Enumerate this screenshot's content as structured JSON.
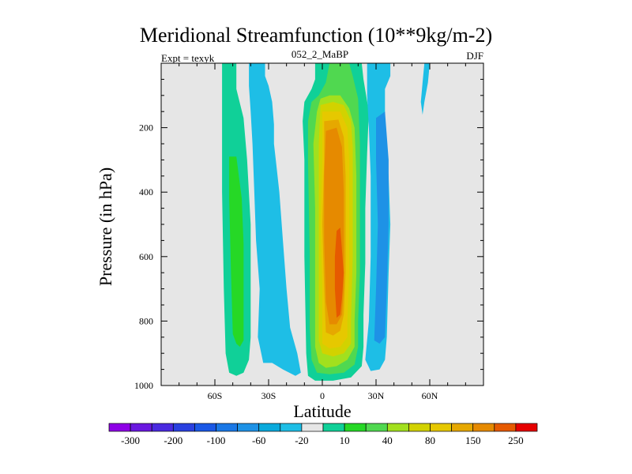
{
  "chart_data": {
    "type": "contour",
    "title": "Meridional Streamfunction (10**9kg/m-2)",
    "subtitle_left": "Expt = texyk",
    "subtitle_center": "052_2_MaBP",
    "subtitle_right": "DJF",
    "xlabel": "Latitude",
    "ylabel": "Pressure (in hPa)",
    "xlim": [
      -90,
      90
    ],
    "ylim": [
      1000,
      0
    ],
    "x_ticks": [
      {
        "value": -60,
        "label": "60S"
      },
      {
        "value": -30,
        "label": "30S"
      },
      {
        "value": 0,
        "label": "0"
      },
      {
        "value": 30,
        "label": "30N"
      },
      {
        "value": 60,
        "label": "60N"
      }
    ],
    "y_ticks": [
      {
        "value": 200,
        "label": "200"
      },
      {
        "value": 400,
        "label": "400"
      },
      {
        "value": 600,
        "label": "600"
      },
      {
        "value": 800,
        "label": "800"
      },
      {
        "value": 1000,
        "label": "1000"
      }
    ],
    "background_color": "#e6e6e6",
    "colorbar": {
      "colors": [
        "#8e00e6",
        "#6a18e0",
        "#4a2ae0",
        "#2a40e0",
        "#1a58e6",
        "#1a78e6",
        "#1e92e6",
        "#0aaadc",
        "#1ebee6",
        "#e6e6e6",
        "#10d098",
        "#26d826",
        "#50d850",
        "#a2e01e",
        "#d2d200",
        "#e6c800",
        "#e6a800",
        "#e68a00",
        "#e65a00",
        "#e60000"
      ],
      "labels": [
        "-300",
        "-200",
        "-100",
        "-60",
        "-20",
        "10",
        "40",
        "80",
        "150",
        "250"
      ]
    },
    "contour_fills": [
      {
        "name": "sh-polar-positive",
        "level_color": "#10d098",
        "points": [
          [
            -56,
            0
          ],
          [
            -48,
            0
          ],
          [
            -48,
            80
          ],
          [
            -44,
            170
          ],
          [
            -42,
            300
          ],
          [
            -40,
            500
          ],
          [
            -40,
            700
          ],
          [
            -40,
            850
          ],
          [
            -41,
            920
          ],
          [
            -44,
            960
          ],
          [
            -48,
            970
          ],
          [
            -52,
            960
          ],
          [
            -54,
            900
          ],
          [
            -55,
            700
          ],
          [
            -56,
            400
          ],
          [
            -56,
            0
          ]
        ]
      },
      {
        "name": "sh-polar-positive-core",
        "level_color": "#26d826",
        "points": [
          [
            -52,
            290
          ],
          [
            -48,
            290
          ],
          [
            -45,
            420
          ],
          [
            -44,
            560
          ],
          [
            -44,
            700
          ],
          [
            -44,
            860
          ],
          [
            -46,
            880
          ],
          [
            -48,
            870
          ],
          [
            -50,
            840
          ],
          [
            -51,
            650
          ],
          [
            -52,
            420
          ],
          [
            -52,
            290
          ]
        ]
      },
      {
        "name": "sh-midlat-negative",
        "level_color": "#1ebee6",
        "points": [
          [
            -41,
            0
          ],
          [
            -32,
            0
          ],
          [
            -32,
            40
          ],
          [
            -30,
            70
          ],
          [
            -28,
            120
          ],
          [
            -27,
            190
          ],
          [
            -27,
            250
          ],
          [
            -26,
            300
          ],
          [
            -24,
            400
          ],
          [
            -22,
            550
          ],
          [
            -20,
            700
          ],
          [
            -18,
            820
          ],
          [
            -14,
            900
          ],
          [
            -12,
            960
          ],
          [
            -15,
            970
          ],
          [
            -22,
            950
          ],
          [
            -28,
            930
          ],
          [
            -33,
            930
          ],
          [
            -36,
            850
          ],
          [
            -35,
            700
          ],
          [
            -37,
            550
          ],
          [
            -38,
            400
          ],
          [
            -39,
            250
          ],
          [
            -40,
            150
          ],
          [
            -41,
            70
          ],
          [
            -41,
            0
          ]
        ]
      },
      {
        "name": "tropical-cell-10",
        "level_color": "#10d098",
        "points": [
          [
            -4,
            0
          ],
          [
            22,
            0
          ],
          [
            23,
            50
          ],
          [
            26,
            150
          ],
          [
            25,
            280
          ],
          [
            24,
            450
          ],
          [
            24,
            620
          ],
          [
            23,
            780
          ],
          [
            23,
            880
          ],
          [
            22,
            940
          ],
          [
            16,
            975
          ],
          [
            6,
            985
          ],
          [
            -4,
            985
          ],
          [
            -8,
            970
          ],
          [
            -9,
            900
          ],
          [
            -10,
            600
          ],
          [
            -10,
            300
          ],
          [
            -11,
            180
          ],
          [
            -10,
            120
          ],
          [
            -6,
            80
          ],
          [
            -4,
            50
          ],
          [
            -4,
            0
          ]
        ]
      },
      {
        "name": "tropical-cell-40",
        "level_color": "#50d850",
        "points": [
          [
            4,
            0
          ],
          [
            15,
            0
          ],
          [
            17,
            40
          ],
          [
            20,
            110
          ],
          [
            21,
            250
          ],
          [
            21,
            450
          ],
          [
            21,
            650
          ],
          [
            20,
            800
          ],
          [
            20,
            880
          ],
          [
            18,
            935
          ],
          [
            12,
            960
          ],
          [
            4,
            965
          ],
          [
            -3,
            960
          ],
          [
            -6,
            920
          ],
          [
            -7,
            820
          ],
          [
            -7,
            600
          ],
          [
            -8,
            300
          ],
          [
            -8,
            180
          ],
          [
            -6,
            120
          ],
          [
            -2,
            100
          ],
          [
            2,
            60
          ],
          [
            4,
            0
          ]
        ]
      },
      {
        "name": "tropical-cell-80",
        "level_color": "#a2e01e",
        "points": [
          [
            -1,
            110
          ],
          [
            4,
            100
          ],
          [
            10,
            100
          ],
          [
            15,
            140
          ],
          [
            18,
            200
          ],
          [
            19,
            350
          ],
          [
            19,
            500
          ],
          [
            19,
            650
          ],
          [
            18,
            800
          ],
          [
            18,
            880
          ],
          [
            14,
            920
          ],
          [
            8,
            940
          ],
          [
            2,
            945
          ],
          [
            -2,
            930
          ],
          [
            -4,
            880
          ],
          [
            -4,
            700
          ],
          [
            -4,
            450
          ],
          [
            -5,
            250
          ],
          [
            -3,
            150
          ],
          [
            -1,
            110
          ]
        ]
      },
      {
        "name": "tropical-cell-150",
        "level_color": "#d2d200",
        "points": [
          [
            -1,
            130
          ],
          [
            6,
            120
          ],
          [
            12,
            130
          ],
          [
            16,
            180
          ],
          [
            17,
            260
          ],
          [
            17,
            400
          ],
          [
            17,
            600
          ],
          [
            16,
            800
          ],
          [
            16,
            870
          ],
          [
            12,
            900
          ],
          [
            6,
            910
          ],
          [
            0,
            900
          ],
          [
            -2,
            860
          ],
          [
            -2,
            700
          ],
          [
            -2,
            400
          ],
          [
            -2,
            250
          ],
          [
            -1,
            130
          ]
        ]
      },
      {
        "name": "tropical-cell-200",
        "level_color": "#e6c800",
        "points": [
          [
            0,
            150
          ],
          [
            10,
            150
          ],
          [
            14,
            200
          ],
          [
            15,
            300
          ],
          [
            15,
            450
          ],
          [
            15,
            650
          ],
          [
            14,
            800
          ],
          [
            14,
            850
          ],
          [
            10,
            880
          ],
          [
            4,
            885
          ],
          [
            0,
            870
          ],
          [
            0,
            700
          ],
          [
            -1,
            500
          ],
          [
            0,
            300
          ],
          [
            0,
            150
          ]
        ]
      },
      {
        "name": "tropical-cell-250",
        "level_color": "#e6a800",
        "points": [
          [
            1,
            180
          ],
          [
            9,
            175
          ],
          [
            12,
            230
          ],
          [
            13,
            350
          ],
          [
            13,
            500
          ],
          [
            13,
            650
          ],
          [
            12,
            780
          ],
          [
            10,
            830
          ],
          [
            6,
            845
          ],
          [
            2,
            835
          ],
          [
            1,
            700
          ],
          [
            0,
            500
          ],
          [
            1,
            300
          ],
          [
            1,
            180
          ]
        ]
      },
      {
        "name": "tropical-cell-300",
        "level_color": "#e68a00",
        "points": [
          [
            2,
            210
          ],
          [
            8,
            200
          ],
          [
            11,
            260
          ],
          [
            12,
            400
          ],
          [
            12,
            550
          ],
          [
            12,
            700
          ],
          [
            11,
            780
          ],
          [
            8,
            810
          ],
          [
            4,
            810
          ],
          [
            2,
            740
          ],
          [
            1,
            550
          ],
          [
            1,
            350
          ],
          [
            2,
            210
          ]
        ]
      },
      {
        "name": "tropical-cell-core",
        "level_color": "#e65a00",
        "points": [
          [
            8,
            520
          ],
          [
            10,
            510
          ],
          [
            11,
            580
          ],
          [
            12,
            650
          ],
          [
            11,
            730
          ],
          [
            10,
            780
          ],
          [
            8,
            790
          ],
          [
            7,
            700
          ],
          [
            7,
            600
          ],
          [
            8,
            520
          ]
        ]
      },
      {
        "name": "nh-midlat-negative",
        "level_color": "#1ebee6",
        "points": [
          [
            25,
            0
          ],
          [
            38,
            0
          ],
          [
            38,
            40
          ],
          [
            35,
            80
          ],
          [
            35,
            200
          ],
          [
            37,
            350
          ],
          [
            38,
            500
          ],
          [
            37,
            650
          ],
          [
            36,
            850
          ],
          [
            35,
            920
          ],
          [
            32,
            950
          ],
          [
            27,
            955
          ],
          [
            24,
            920
          ],
          [
            26,
            800
          ],
          [
            27,
            600
          ],
          [
            27,
            350
          ],
          [
            26,
            200
          ],
          [
            25,
            100
          ],
          [
            25,
            0
          ]
        ]
      },
      {
        "name": "nh-midlat-negative-core",
        "level_color": "#1e92e6",
        "points": [
          [
            30,
            170
          ],
          [
            35,
            150
          ],
          [
            37,
            300
          ],
          [
            37,
            500
          ],
          [
            36,
            700
          ],
          [
            35,
            850
          ],
          [
            32,
            870
          ],
          [
            29,
            860
          ],
          [
            30,
            700
          ],
          [
            31,
            500
          ],
          [
            30,
            300
          ],
          [
            30,
            170
          ]
        ]
      },
      {
        "name": "nh-polar-negative",
        "level_color": "#1ebee6",
        "points": [
          [
            57,
            0
          ],
          [
            60,
            0
          ],
          [
            59,
            60
          ],
          [
            57,
            120
          ],
          [
            56,
            160
          ],
          [
            55,
            120
          ],
          [
            56,
            60
          ],
          [
            57,
            0
          ]
        ]
      }
    ]
  }
}
